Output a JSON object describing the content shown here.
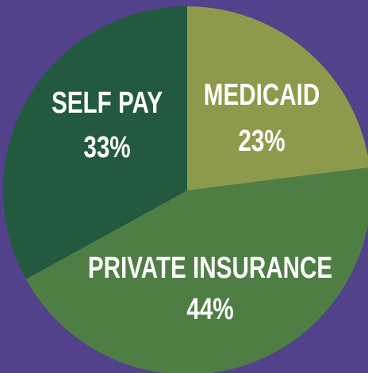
{
  "chart_data": {
    "type": "pie",
    "categories": [
      "MEDICAID",
      "PRIVATE INSURANCE",
      "SELF PAY"
    ],
    "values": [
      23,
      44,
      33
    ],
    "value_labels": [
      "23%",
      "44%",
      "33%"
    ],
    "colors": [
      "#8e9a4b",
      "#4f7e45",
      "#235a3f"
    ],
    "background": "#52418b"
  }
}
